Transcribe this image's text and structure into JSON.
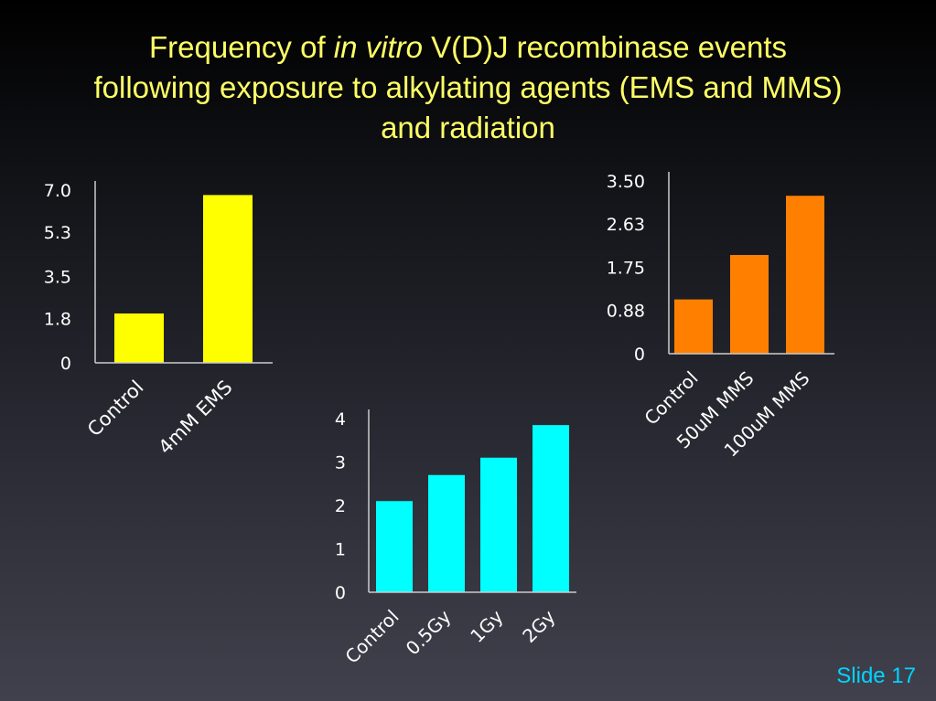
{
  "title": {
    "line1_pre": "Frequency of ",
    "line1_em": "in vitro",
    "line1_post": " V(D)J recombinase events",
    "line2": "following exposure to alkylating agents (EMS and MMS)",
    "line3": "and radiation"
  },
  "slide_label": "Slide 17",
  "colors": {
    "title": "#ffff66",
    "slide_label": "#00d4ff",
    "axis": "#cccccc"
  },
  "chart_data": [
    {
      "type": "bar",
      "title": "",
      "xlabel": "",
      "ylabel": "",
      "categories": [
        "Control",
        "4mM EMS"
      ],
      "values": [
        2.0,
        6.8
      ],
      "ylim": [
        0,
        7.0
      ],
      "yticks": [
        "0",
        "1.8",
        "3.5",
        "5.3",
        "7.0"
      ],
      "ytick_values": [
        0,
        1.8,
        3.5,
        5.3,
        7.0
      ],
      "color": "#ffff00",
      "grid": false
    },
    {
      "type": "bar",
      "title": "",
      "xlabel": "",
      "ylabel": "",
      "categories": [
        "Control",
        "0.5Gy",
        "1Gy",
        "2Gy"
      ],
      "values": [
        2.1,
        2.7,
        3.1,
        3.85
      ],
      "ylim": [
        0,
        4
      ],
      "yticks": [
        "0",
        "1",
        "2",
        "3",
        "4"
      ],
      "ytick_values": [
        0,
        1,
        2,
        3,
        4
      ],
      "color": "#00ffff",
      "grid": false
    },
    {
      "type": "bar",
      "title": "",
      "xlabel": "",
      "ylabel": "",
      "categories": [
        "Control",
        "50uM MMS",
        "100uM MMS"
      ],
      "values": [
        1.1,
        2.0,
        3.2
      ],
      "ylim": [
        0,
        3.5
      ],
      "yticks": [
        "0",
        "0.88",
        "1.75",
        "2.63",
        "3.50"
      ],
      "ytick_values": [
        0,
        0.88,
        1.75,
        2.63,
        3.5
      ],
      "color": "#ff8000",
      "grid": false
    }
  ]
}
